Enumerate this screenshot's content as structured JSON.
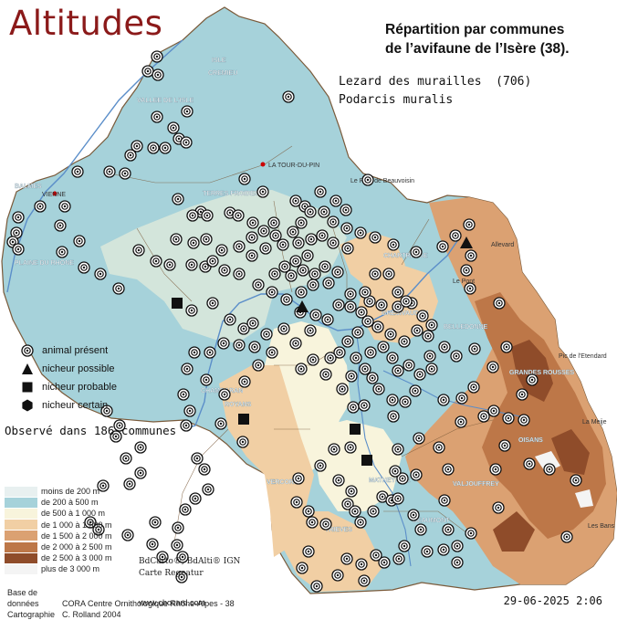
{
  "title": "Altitudes",
  "subtitle_line1": "Répartition par communes",
  "subtitle_line2": "de l’avifaune de l’Isère (38).",
  "species_line1": "Lezard des murailles  (706)",
  "species_line2": "Podarcis muralis",
  "observed": "Observé dans 186 communes",
  "legend_symbols": [
    {
      "symbol": "animal-present",
      "label": "animal présent"
    },
    {
      "symbol": "nicheur-possible",
      "label": "nicheur possible"
    },
    {
      "symbol": "nicheur-probable",
      "label": "nicheur probable"
    },
    {
      "symbol": "nicheur-certain",
      "label": "nicheur certain"
    }
  ],
  "altitude_legend": [
    {
      "label": "moins de 200 m",
      "color": "#e8f0f0"
    },
    {
      "label": "de 200 à 500 m",
      "color": "#a6d2da"
    },
    {
      "label": "de 500 à 1 000 m",
      "color": "#f8f4dc"
    },
    {
      "label": "de 1 000 à 1 500 m",
      "color": "#f1cfa4"
    },
    {
      "label": "de 1 500 à 2 000 m",
      "color": "#dba172"
    },
    {
      "label": "de 2 000 à 2 500 m",
      "color": "#bd7748"
    },
    {
      "label": "de 2 500 à 3 000 m",
      "color": "#8f4c2a"
    },
    {
      "label": "plus de 3 000 m",
      "color": "#f4f4f4"
    }
  ],
  "map_credit_line1": "BdCarto®, BdAlti® IGN",
  "map_credit_line2": "Carte Regeatur",
  "footer_label1": "Base de données",
  "footer_value1": "CORA Centre Ornithologique Rhône-Alpes - 38",
  "footer_label2": "Cartographie",
  "footer_value2": "C. Rolland 2004",
  "footer_url": "www.chocard.com",
  "date_stamp": "29-06-2025 2:06",
  "colors": {
    "title": "#8b1a1a",
    "low": "#a6d2da",
    "mid": "#f8f4dc",
    "high": "#dba172",
    "river": "#5b8ec9",
    "border": "#7a5a3a"
  },
  "town_labels": [
    "ISLE",
    "CREMIEU",
    "VALLEE DE L'ISLE",
    "TERRES FROIDES",
    "LA TOUR-DU-PIN",
    "VIENNE",
    "BALMES",
    "PLAINE DU RHONE",
    "ROYANS",
    "VERCORS",
    "CHAMBARAN",
    "GRESIVAUDAN",
    "BELLEDONNE",
    "CHARTREUSE",
    "OISANS",
    "MATHEYSINE",
    "TRIEVES",
    "BEAUMONT",
    "VALJOUFFREY",
    "GRANDES ROUSSES",
    "Le Pont de Beauvoisin",
    "Allevard",
    "Pic de l'Etendard",
    "La Meije",
    "Les Bans",
    "Le Pont"
  ],
  "records": {
    "animal_present": [
      [
        172,
        62
      ],
      [
        162,
        78
      ],
      [
        173,
        82
      ],
      [
        316,
        106
      ],
      [
        205,
        122
      ],
      [
        172,
        128
      ],
      [
        190,
        140
      ],
      [
        196,
        152
      ],
      [
        150,
        160
      ],
      [
        168,
        162
      ],
      [
        181,
        162
      ],
      [
        204,
        156
      ],
      [
        143,
        170
      ],
      [
        120,
        188
      ],
      [
        137,
        190
      ],
      [
        85,
        188
      ],
      [
        268,
        196
      ],
      [
        288,
        210
      ],
      [
        403,
        197
      ],
      [
        351,
        210
      ],
      [
        44,
        226
      ],
      [
        71,
        226
      ],
      [
        20,
        238
      ],
      [
        18,
        255
      ],
      [
        14,
        265
      ],
      [
        20,
        273
      ],
      [
        66,
        247
      ],
      [
        87,
        264
      ],
      [
        68,
        276
      ],
      [
        92,
        293
      ],
      [
        110,
        300
      ],
      [
        130,
        316
      ],
      [
        195,
        218
      ],
      [
        220,
        232
      ],
      [
        211,
        236
      ],
      [
        227,
        236
      ],
      [
        252,
        233
      ],
      [
        261,
        236
      ],
      [
        277,
        244
      ],
      [
        300,
        244
      ],
      [
        324,
        220
      ],
      [
        334,
        226
      ],
      [
        340,
        232
      ],
      [
        355,
        232
      ],
      [
        368,
        220
      ],
      [
        379,
        230
      ],
      [
        365,
        243
      ],
      [
        380,
        250
      ],
      [
        395,
        255
      ],
      [
        330,
        244
      ],
      [
        321,
        254
      ],
      [
        302,
        258
      ],
      [
        289,
        253
      ],
      [
        276,
        260
      ],
      [
        262,
        270
      ],
      [
        243,
        274
      ],
      [
        226,
        262
      ],
      [
        212,
        266
      ],
      [
        193,
        262
      ],
      [
        186,
        290
      ],
      [
        171,
        286
      ],
      [
        152,
        274
      ],
      [
        210,
        290
      ],
      [
        225,
        292
      ],
      [
        233,
        286
      ],
      [
        246,
        296
      ],
      [
        262,
        300
      ],
      [
        276,
        280
      ],
      [
        291,
        272
      ],
      [
        310,
        268
      ],
      [
        327,
        266
      ],
      [
        341,
        262
      ],
      [
        353,
        258
      ],
      [
        365,
        266
      ],
      [
        337,
        280
      ],
      [
        324,
        286
      ],
      [
        312,
        292
      ],
      [
        301,
        300
      ],
      [
        319,
        302
      ],
      [
        332,
        296
      ],
      [
        345,
        300
      ],
      [
        356,
        292
      ],
      [
        370,
        298
      ],
      [
        360,
        310
      ],
      [
        343,
        312
      ],
      [
        330,
        320
      ],
      [
        314,
        328
      ],
      [
        298,
        320
      ],
      [
        283,
        312
      ],
      [
        233,
        332
      ],
      [
        210,
        340
      ],
      [
        252,
        350
      ],
      [
        267,
        360
      ],
      [
        277,
        354
      ],
      [
        292,
        366
      ],
      [
        279,
        380
      ],
      [
        262,
        378
      ],
      [
        245,
        376
      ],
      [
        230,
        386
      ],
      [
        213,
        386
      ],
      [
        205,
        404
      ],
      [
        226,
        416
      ],
      [
        246,
        432
      ],
      [
        268,
        418
      ],
      [
        283,
        400
      ],
      [
        298,
        386
      ],
      [
        311,
        360
      ],
      [
        329,
        342
      ],
      [
        346,
        345
      ],
      [
        359,
        350
      ],
      [
        371,
        334
      ],
      [
        384,
        336
      ],
      [
        396,
        342
      ],
      [
        405,
        330
      ],
      [
        418,
        334
      ],
      [
        436,
        336
      ],
      [
        451,
        332
      ],
      [
        463,
        346
      ],
      [
        473,
        356
      ],
      [
        457,
        362
      ],
      [
        443,
        374
      ],
      [
        428,
        366
      ],
      [
        414,
        358
      ],
      [
        403,
        352
      ],
      [
        392,
        364
      ],
      [
        381,
        374
      ],
      [
        372,
        386
      ],
      [
        362,
        392
      ],
      [
        357,
        410
      ],
      [
        343,
        394
      ],
      [
        330,
        404
      ],
      [
        324,
        376
      ],
      [
        340,
        362
      ],
      [
        390,
        392
      ],
      [
        400,
        404
      ],
      [
        408,
        414
      ],
      [
        415,
        426
      ],
      [
        430,
        438
      ],
      [
        444,
        440
      ],
      [
        455,
        428
      ],
      [
        460,
        410
      ],
      [
        448,
        400
      ],
      [
        436,
        406
      ],
      [
        430,
        392
      ],
      [
        420,
        380
      ],
      [
        406,
        386
      ],
      [
        385,
        412
      ],
      [
        375,
        426
      ],
      [
        387,
        446
      ],
      [
        399,
        444
      ],
      [
        445,
        330
      ],
      [
        436,
        320
      ],
      [
        426,
        300
      ],
      [
        411,
        300
      ],
      [
        400,
        320
      ],
      [
        384,
        322
      ],
      [
        381,
        272
      ],
      [
        411,
        260
      ],
      [
        431,
        268
      ],
      [
        456,
        276
      ],
      [
        485,
        270
      ],
      [
        499,
        258
      ],
      [
        514,
        246
      ],
      [
        516,
        280
      ],
      [
        511,
        296
      ],
      [
        515,
        316
      ],
      [
        469,
        368
      ],
      [
        471,
        390
      ],
      [
        473,
        404
      ],
      [
        487,
        380
      ],
      [
        500,
        390
      ],
      [
        520,
        382
      ],
      [
        547,
        332
      ],
      [
        555,
        380
      ],
      [
        540,
        402
      ],
      [
        519,
        424
      ],
      [
        506,
        436
      ],
      [
        541,
        450
      ],
      [
        530,
        456
      ],
      [
        505,
        462
      ],
      [
        486,
        438
      ],
      [
        583,
        416
      ],
      [
        572,
        432
      ],
      [
        574,
        460
      ],
      [
        553,
        488
      ],
      [
        557,
        458
      ],
      [
        431,
        456
      ],
      [
        436,
        492
      ],
      [
        459,
        480
      ],
      [
        481,
        490
      ],
      [
        491,
        514
      ],
      [
        456,
        520
      ],
      [
        441,
        524
      ],
      [
        433,
        516
      ],
      [
        419,
        544
      ],
      [
        384,
        490
      ],
      [
        366,
        492
      ],
      [
        351,
        510
      ],
      [
        327,
        524
      ],
      [
        325,
        550
      ],
      [
        371,
        526
      ],
      [
        385,
        538
      ],
      [
        381,
        552
      ],
      [
        389,
        560
      ],
      [
        395,
        572
      ],
      [
        409,
        560
      ],
      [
        429,
        548
      ],
      [
        436,
        546
      ],
      [
        453,
        564
      ],
      [
        461,
        580
      ],
      [
        443,
        598
      ],
      [
        437,
        612
      ],
      [
        421,
        616
      ],
      [
        412,
        608
      ],
      [
        396,
        618
      ],
      [
        399,
        636
      ],
      [
        380,
        612
      ],
      [
        370,
        630
      ],
      [
        338,
        604
      ],
      [
        331,
        622
      ],
      [
        347,
        642
      ],
      [
        357,
        574
      ],
      [
        342,
        572
      ],
      [
        338,
        560
      ],
      [
        487,
        548
      ],
      [
        491,
        580
      ],
      [
        501,
        598
      ],
      [
        501,
        616
      ],
      [
        486,
        602
      ],
      [
        468,
        604
      ],
      [
        516,
        584
      ],
      [
        546,
        556
      ],
      [
        543,
        514
      ],
      [
        580,
        508
      ],
      [
        602,
        514
      ],
      [
        631,
        526
      ],
      [
        621,
        588
      ],
      [
        201,
        432
      ],
      [
        208,
        450
      ],
      [
        204,
        466
      ],
      [
        242,
        464
      ],
      [
        266,
        484
      ],
      [
        216,
        502
      ],
      [
        224,
        514
      ],
      [
        228,
        536
      ],
      [
        214,
        546
      ],
      [
        203,
        558
      ],
      [
        195,
        578
      ],
      [
        194,
        597
      ],
      [
        200,
        610
      ],
      [
        199,
        632
      ],
      [
        178,
        610
      ],
      [
        167,
        596
      ],
      [
        170,
        572
      ],
      [
        154,
        518
      ],
      [
        140,
        586
      ],
      [
        108,
        580
      ],
      [
        99,
        572
      ],
      [
        113,
        532
      ],
      [
        142,
        530
      ],
      [
        138,
        502
      ],
      [
        154,
        490
      ],
      [
        127,
        478
      ],
      [
        117,
        450
      ],
      [
        131,
        466
      ]
    ],
    "nicheur_possible": [
      [
        331,
        336
      ],
      [
        511,
        266
      ]
    ],
    "nicheur_probable": [
      [
        194,
        332
      ],
      [
        267,
        459
      ],
      [
        389,
        470
      ],
      [
        402,
        504
      ]
    ],
    "nicheur_certain": []
  }
}
